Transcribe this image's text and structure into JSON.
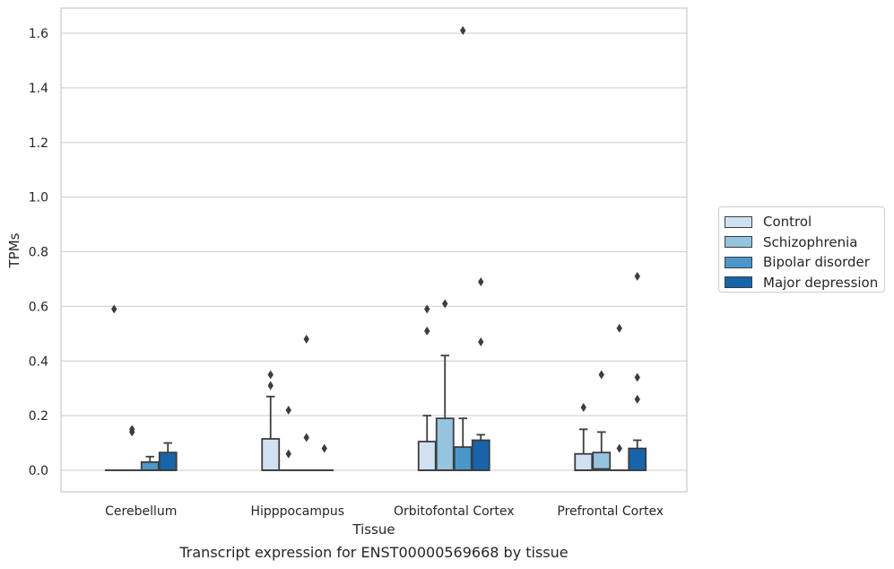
{
  "chart_data": {
    "type": "box",
    "caption": "Transcript expression for ENST00000569668 by tissue",
    "xlabel": "Tissue",
    "ylabel": "TPMs",
    "ylim": [
      -0.08,
      1.69
    ],
    "yticks": [
      "0.0",
      "0.2",
      "0.4",
      "0.6",
      "0.8",
      "1.0",
      "1.2",
      "1.4",
      "1.6"
    ],
    "grid": true,
    "legend_position": "right",
    "categories": [
      "Cerebellum",
      "Hipppocampus",
      "Orbitofontal Cortex",
      "Prefrontal Cortex"
    ],
    "series": [
      {
        "name": "Control",
        "color": "#d0e1f2",
        "boxes": [
          {
            "q1": 0,
            "median": 0,
            "q3": 0,
            "whisker_low": 0,
            "whisker_high": 0,
            "outliers": [
              0.59
            ]
          },
          {
            "q1": 0,
            "median": 0,
            "q3": 0.115,
            "whisker_low": 0,
            "whisker_high": 0.27,
            "outliers": [
              0.35,
              0.31
            ]
          },
          {
            "q1": 0,
            "median": 0,
            "q3": 0.105,
            "whisker_low": 0,
            "whisker_high": 0.2,
            "outliers": [
              0.59,
              0.51
            ]
          },
          {
            "q1": 0,
            "median": 0,
            "q3": 0.06,
            "whisker_low": 0,
            "whisker_high": 0.15,
            "outliers": [
              0.23
            ]
          }
        ]
      },
      {
        "name": "Schizophrenia",
        "color": "#94c4df",
        "boxes": [
          {
            "q1": 0,
            "median": 0,
            "q3": 0,
            "whisker_low": 0,
            "whisker_high": 0,
            "outliers": [
              0.15,
              0.14
            ]
          },
          {
            "q1": 0,
            "median": 0,
            "q3": 0,
            "whisker_low": 0,
            "whisker_high": 0,
            "outliers": [
              0.22,
              0.06
            ]
          },
          {
            "q1": 0,
            "median": 0,
            "q3": 0.19,
            "whisker_low": 0,
            "whisker_high": 0.42,
            "outliers": [
              0.61
            ]
          },
          {
            "q1": 0,
            "median": 0.005,
            "q3": 0.065,
            "whisker_low": 0,
            "whisker_high": 0.14,
            "outliers": [
              0.35
            ]
          }
        ]
      },
      {
        "name": "Bipolar disorder",
        "color": "#4a98c9",
        "boxes": [
          {
            "q1": 0,
            "median": 0,
            "q3": 0.03,
            "whisker_low": 0,
            "whisker_high": 0.05,
            "outliers": []
          },
          {
            "q1": 0,
            "median": 0,
            "q3": 0,
            "whisker_low": 0,
            "whisker_high": 0,
            "outliers": [
              0.48,
              0.12
            ]
          },
          {
            "q1": 0,
            "median": 0,
            "q3": 0.085,
            "whisker_low": 0,
            "whisker_high": 0.19,
            "outliers": [
              1.61
            ]
          },
          {
            "q1": 0,
            "median": 0,
            "q3": 0,
            "whisker_low": 0,
            "whisker_high": 0,
            "outliers": [
              0.52,
              0.08
            ]
          }
        ]
      },
      {
        "name": "Major depression",
        "color": "#1764ab",
        "boxes": [
          {
            "q1": 0,
            "median": 0,
            "q3": 0.065,
            "whisker_low": 0,
            "whisker_high": 0.1,
            "outliers": []
          },
          {
            "q1": 0,
            "median": 0,
            "q3": 0,
            "whisker_low": 0,
            "whisker_high": 0,
            "outliers": [
              0.08
            ]
          },
          {
            "q1": 0,
            "median": 0,
            "q3": 0.11,
            "whisker_low": 0,
            "whisker_high": 0.13,
            "outliers": [
              0.69,
              0.47
            ]
          },
          {
            "q1": 0,
            "median": 0,
            "q3": 0.08,
            "whisker_low": 0,
            "whisker_high": 0.11,
            "outliers": [
              0.71,
              0.34,
              0.26
            ]
          }
        ]
      }
    ]
  }
}
